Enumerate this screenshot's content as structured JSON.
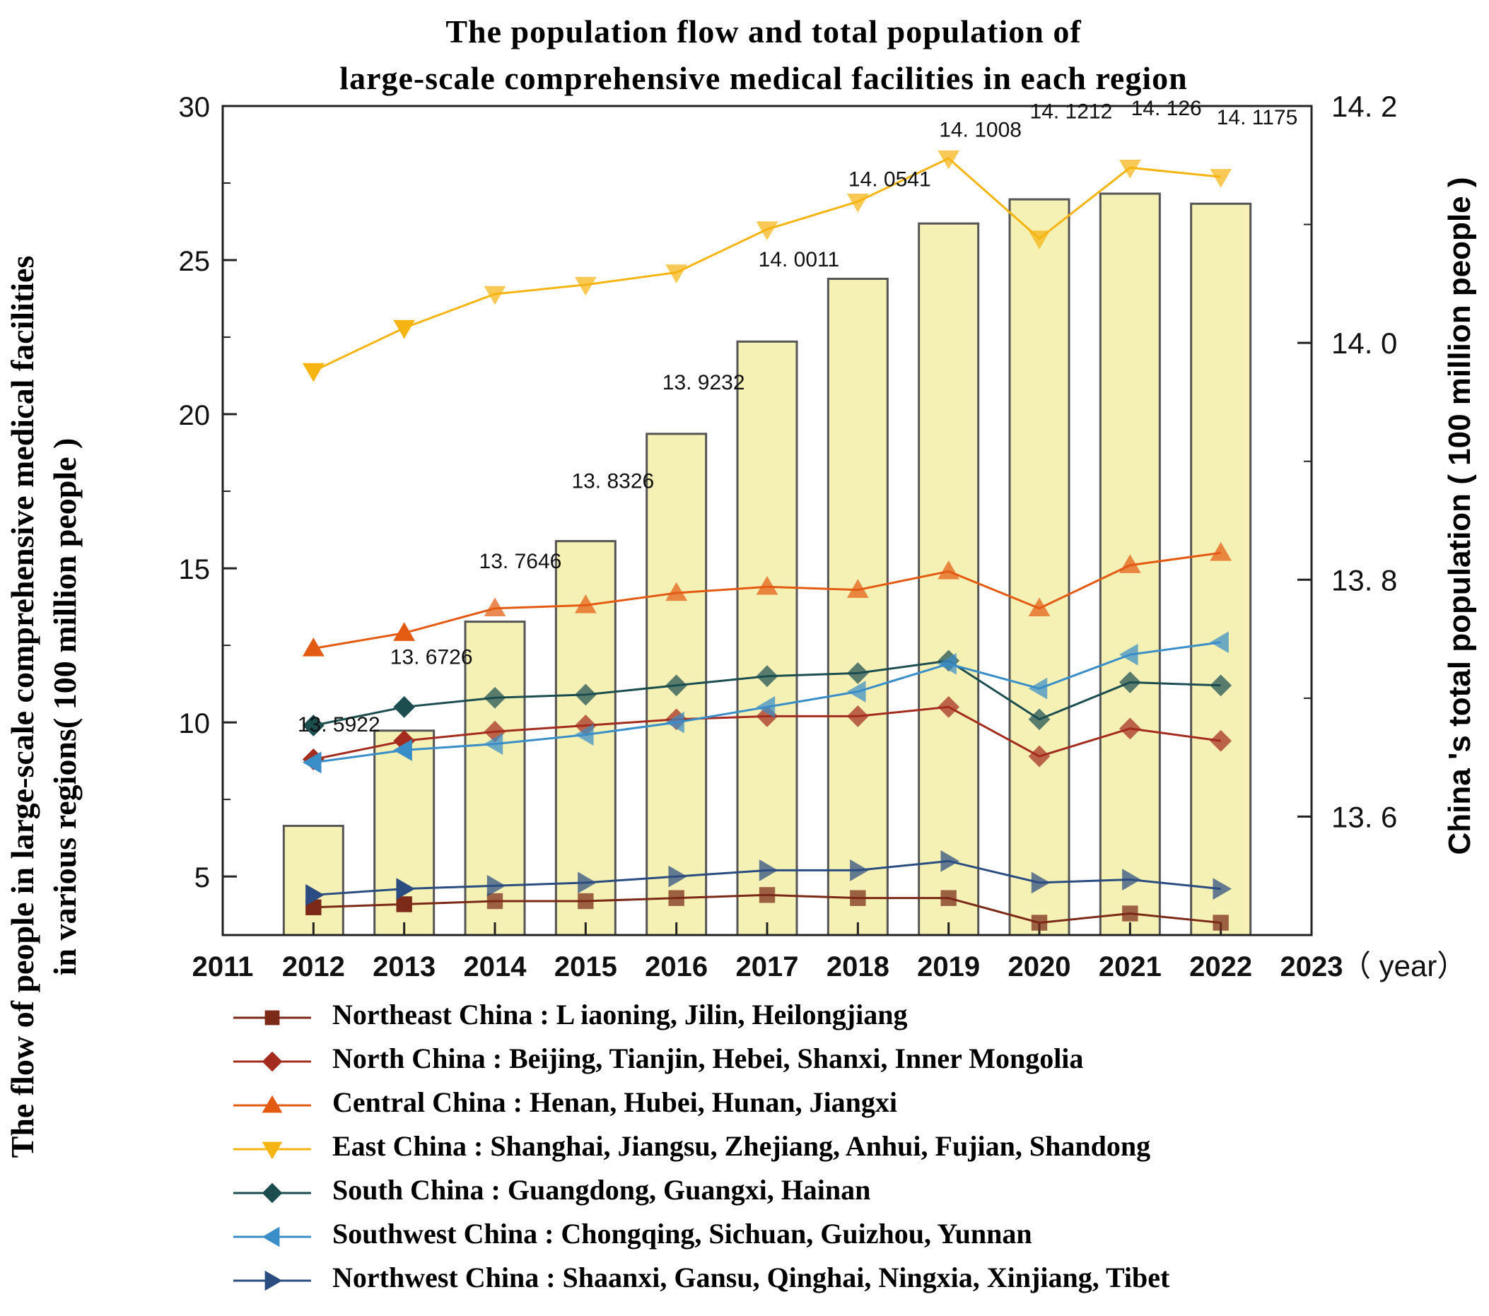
{
  "chart_data": {
    "type": "bar+line",
    "title_line1": "The population flow and total population of",
    "title_line2": "large-scale comprehensive medical facilities in each region",
    "ylabel_left_line1": "The flow of people in large-scale comprehensive medical facilities",
    "ylabel_left_line2": "in various regions( 100 million people )",
    "ylabel_right": "China 's total population ( 100 million people )",
    "xlabel_suffix": "（ year）",
    "x_ticks": [
      "2011",
      "2012",
      "2013",
      "2014",
      "2015",
      "2016",
      "2017",
      "2018",
      "2019",
      "2020",
      "2021",
      "2022",
      "2023"
    ],
    "xlim": [
      2011,
      2023
    ],
    "ylim_left": [
      3.1,
      30
    ],
    "y_ticks_left": [
      5,
      10,
      15,
      20,
      25,
      30
    ],
    "ylim_right": [
      13.5,
      14.2
    ],
    "y_ticks_right": [
      "13. 6",
      "13. 8",
      "14. 0",
      "14. 2"
    ],
    "y_ticks_right_values": [
      13.6,
      13.8,
      14.0,
      14.2
    ],
    "bars": {
      "name": "China's total population",
      "color": "#f5f0b4",
      "x": [
        2012,
        2013,
        2014,
        2015,
        2016,
        2017,
        2018,
        2019,
        2020,
        2021,
        2022
      ],
      "values": [
        13.5922,
        13.6726,
        13.7646,
        13.8326,
        13.9232,
        14.0011,
        14.0541,
        14.1008,
        14.1212,
        14.126,
        14.1175
      ],
      "labels": [
        "13. 5922",
        "13. 6726",
        "13. 7646",
        "13. 8326",
        "13. 9232",
        "14. 0011",
        "14. 0541",
        "14. 1008",
        "14. 1212",
        "14. 126",
        "14. 1175"
      ]
    },
    "series": [
      {
        "name": "Northeast China : L iaoning, Jilin, Heilongjiang",
        "marker": "square",
        "color": "#7a2a17",
        "x": [
          2012,
          2013,
          2014,
          2015,
          2016,
          2017,
          2018,
          2019,
          2020,
          2021,
          2022
        ],
        "values": [
          4.0,
          4.1,
          4.2,
          4.2,
          4.3,
          4.4,
          4.3,
          4.3,
          3.5,
          3.8,
          3.5
        ]
      },
      {
        "name": "North China : Beijing, Tianjin, Hebei, Shanxi, Inner Mongolia",
        "marker": "diamond",
        "color": "#a32c1f",
        "x": [
          2012,
          2013,
          2014,
          2015,
          2016,
          2017,
          2018,
          2019,
          2020,
          2021,
          2022
        ],
        "values": [
          8.8,
          9.4,
          9.7,
          9.9,
          10.1,
          10.2,
          10.2,
          10.5,
          8.9,
          9.8,
          9.4
        ]
      },
      {
        "name": "Central China : Henan, Hubei, Hunan, Jiangxi",
        "marker": "triangle-up",
        "color": "#e35b12",
        "x": [
          2012,
          2013,
          2014,
          2015,
          2016,
          2017,
          2018,
          2019,
          2020,
          2021,
          2022
        ],
        "values": [
          12.4,
          12.9,
          13.7,
          13.8,
          14.2,
          14.4,
          14.3,
          14.9,
          13.7,
          15.1,
          15.5
        ]
      },
      {
        "name": "East China : Shanghai, Jiangsu, Zhejiang, Anhui, Fujian, Shandong",
        "marker": "triangle-down",
        "color": "#f5b412",
        "x": [
          2012,
          2013,
          2014,
          2015,
          2016,
          2017,
          2018,
          2019,
          2020,
          2021,
          2022
        ],
        "values": [
          21.4,
          22.8,
          23.9,
          24.2,
          24.6,
          26.0,
          26.9,
          28.3,
          25.7,
          28.0,
          27.7
        ]
      },
      {
        "name": "South China : Guangdong, Guangxi, Hainan",
        "marker": "diamond",
        "color": "#1c4e50",
        "x": [
          2012,
          2013,
          2014,
          2015,
          2016,
          2017,
          2018,
          2019,
          2020,
          2021,
          2022
        ],
        "values": [
          9.9,
          10.5,
          10.8,
          10.9,
          11.2,
          11.5,
          11.6,
          12.0,
          10.1,
          11.3,
          11.2
        ]
      },
      {
        "name": "Southwest China : Chongqing, Sichuan, Guizhou, Yunnan",
        "marker": "triangle-left",
        "color": "#3a8ec8",
        "x": [
          2012,
          2013,
          2014,
          2015,
          2016,
          2017,
          2018,
          2019,
          2020,
          2021,
          2022
        ],
        "values": [
          8.7,
          9.1,
          9.3,
          9.6,
          10.0,
          10.5,
          11.0,
          11.9,
          11.1,
          12.2,
          12.6
        ]
      },
      {
        "name": "Northwest China : Shaanxi, Gansu, Qinghai, Ningxia, Xinjiang, Tibet",
        "marker": "triangle-right",
        "color": "#2b4c80",
        "x": [
          2012,
          2013,
          2014,
          2015,
          2016,
          2017,
          2018,
          2019,
          2020,
          2021,
          2022
        ],
        "values": [
          4.4,
          4.6,
          4.7,
          4.8,
          5.0,
          5.2,
          5.2,
          5.5,
          4.8,
          4.9,
          4.6
        ]
      }
    ]
  }
}
